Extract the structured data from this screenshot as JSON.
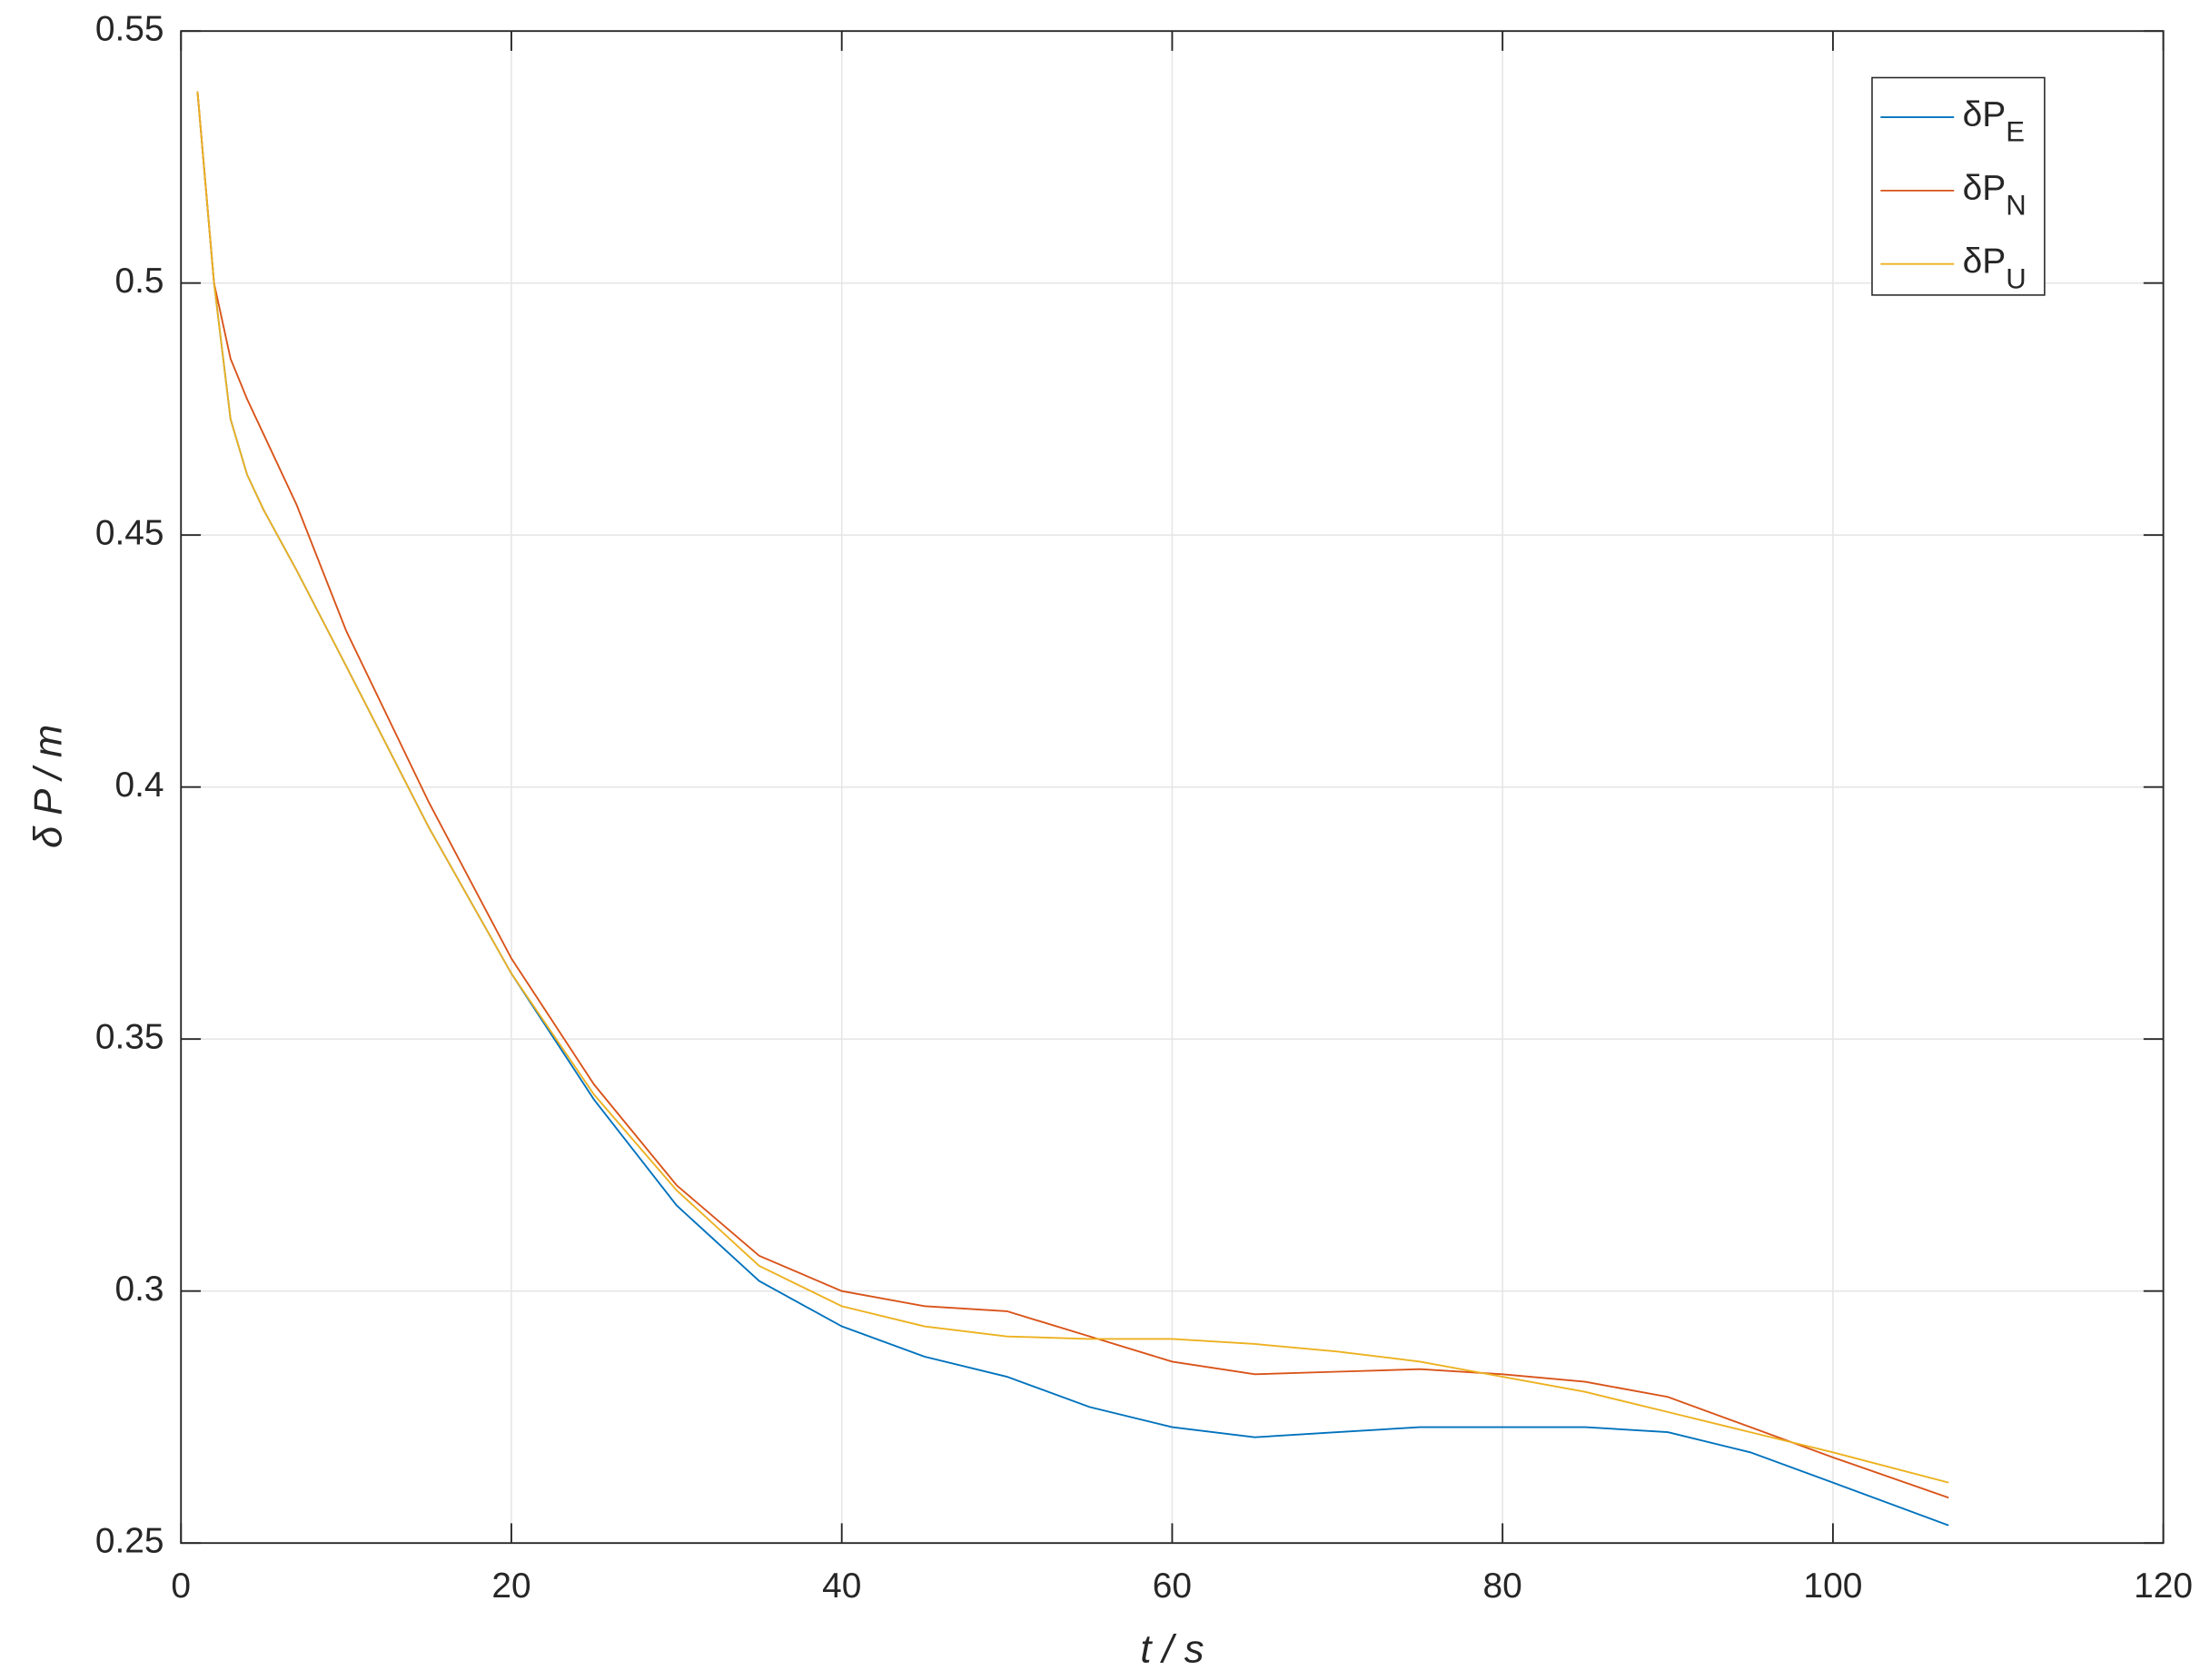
{
  "chart_data": {
    "type": "line",
    "xlabel": "t  / s",
    "ylabel": "δ P / m",
    "x": [
      1,
      2,
      3,
      4,
      5,
      7,
      10,
      15,
      20,
      25,
      30,
      35,
      40,
      45,
      50,
      55,
      60,
      65,
      70,
      75,
      80,
      85,
      90,
      95,
      100,
      107
    ],
    "series": [
      {
        "name": "δPE",
        "color": "#0072BD",
        "values": [
          0.538,
          0.5,
          0.473,
          0.462,
          0.455,
          0.443,
          0.424,
          0.392,
          0.363,
          0.338,
          0.317,
          0.302,
          0.293,
          0.287,
          0.283,
          0.277,
          0.273,
          0.271,
          0.272,
          0.273,
          0.273,
          0.273,
          0.272,
          0.268,
          0.262,
          0.2535
        ]
      },
      {
        "name": "δPN",
        "color": "#D95319",
        "values": [
          0.538,
          0.5,
          0.485,
          0.477,
          0.47,
          0.456,
          0.431,
          0.397,
          0.366,
          0.341,
          0.321,
          0.307,
          0.3,
          0.297,
          0.296,
          0.291,
          0.286,
          0.2835,
          0.284,
          0.2845,
          0.2835,
          0.282,
          0.279,
          0.273,
          0.267,
          0.259
        ]
      },
      {
        "name": "δPU",
        "color": "#EDB120",
        "values": [
          0.538,
          0.5,
          0.473,
          0.462,
          0.455,
          0.443,
          0.424,
          0.392,
          0.363,
          0.339,
          0.32,
          0.305,
          0.297,
          0.293,
          0.291,
          0.2905,
          0.2905,
          0.2895,
          0.288,
          0.286,
          0.283,
          0.28,
          0.276,
          0.272,
          0.268,
          0.262
        ]
      }
    ],
    "xlim": [
      0,
      120
    ],
    "xticks": [
      0,
      20,
      40,
      60,
      80,
      100,
      120
    ],
    "ylim": [
      0.25,
      0.55
    ],
    "yticks": [
      0.25,
      0.3,
      0.35,
      0.4,
      0.45,
      0.5,
      0.55
    ],
    "grid": true,
    "legend": "upper right"
  }
}
